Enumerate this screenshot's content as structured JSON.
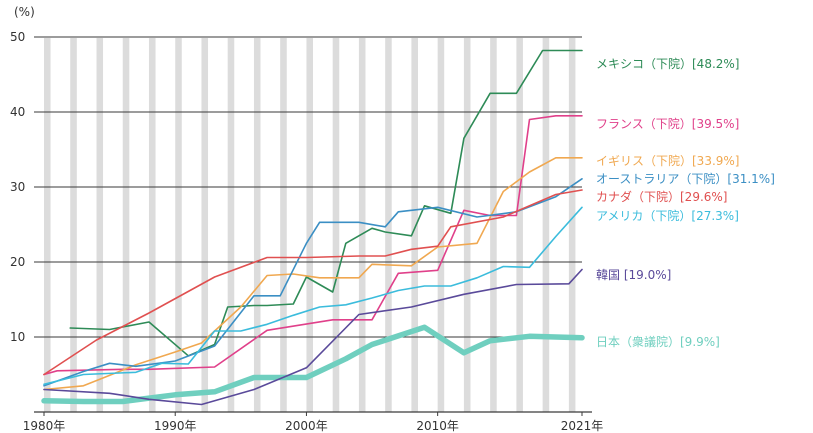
{
  "chart_data": {
    "type": "line",
    "yunit": "(%)",
    "ylim": [
      0,
      52
    ],
    "xlim": [
      1980,
      2021
    ],
    "yticks": [
      10,
      20,
      30,
      40,
      50
    ],
    "xticks": [
      {
        "value": 1980,
        "label": "1980年"
      },
      {
        "value": 1990,
        "label": "1990年"
      },
      {
        "value": 2000,
        "label": "2000年"
      },
      {
        "value": 2010,
        "label": "2010年"
      },
      {
        "value": 2021,
        "label": "2021年"
      }
    ],
    "grid": "horizontal lines with alternating vertical bands",
    "series": [
      {
        "key": "mexico",
        "label": "メキシコ（下院）[48.2%]",
        "color": "#2e8b57",
        "points": [
          [
            1982,
            11.2
          ],
          [
            1985,
            11.0
          ],
          [
            1988,
            12.0
          ],
          [
            1991,
            7.5
          ],
          [
            1993,
            9.0
          ],
          [
            1994,
            14.0
          ],
          [
            1996,
            14.2
          ],
          [
            1997,
            14.2
          ],
          [
            1999,
            14.4
          ],
          [
            2000,
            18.0
          ],
          [
            2002,
            16.0
          ],
          [
            2003,
            22.5
          ],
          [
            2005,
            24.5
          ],
          [
            2006,
            24.0
          ],
          [
            2008,
            23.5
          ],
          [
            2009,
            27.5
          ],
          [
            2011,
            26.5
          ],
          [
            2012,
            36.5
          ],
          [
            2014,
            42.5
          ],
          [
            2016,
            42.5
          ],
          [
            2018,
            48.2
          ],
          [
            2021,
            48.2
          ]
        ]
      },
      {
        "key": "france",
        "label": "フランス（下院）[39.5%]",
        "color": "#e0408a",
        "points": [
          [
            1980,
            5.0
          ],
          [
            1981,
            5.5
          ],
          [
            1986,
            5.7
          ],
          [
            1988,
            5.7
          ],
          [
            1993,
            6.0
          ],
          [
            1997,
            10.9
          ],
          [
            2002,
            12.3
          ],
          [
            2003,
            12.3
          ],
          [
            2005,
            12.3
          ],
          [
            2007,
            18.5
          ],
          [
            2010,
            18.9
          ],
          [
            2012,
            26.9
          ],
          [
            2014,
            26.2
          ],
          [
            2016,
            26.2
          ],
          [
            2017,
            39.0
          ],
          [
            2019,
            39.5
          ],
          [
            2021,
            39.5
          ]
        ]
      },
      {
        "key": "uk",
        "label": "イギリス（下院）[33.9%]",
        "color": "#f0a850",
        "points": [
          [
            1980,
            3.0
          ],
          [
            1983,
            3.5
          ],
          [
            1987,
            6.3
          ],
          [
            1990,
            8.0
          ],
          [
            1992,
            9.2
          ],
          [
            1995,
            14.0
          ],
          [
            1997,
            18.2
          ],
          [
            1999,
            18.4
          ],
          [
            2001,
            17.9
          ],
          [
            2004,
            17.9
          ],
          [
            2005,
            19.7
          ],
          [
            2008,
            19.5
          ],
          [
            2010,
            22.0
          ],
          [
            2013,
            22.5
          ],
          [
            2015,
            29.4
          ],
          [
            2017,
            32.0
          ],
          [
            2019,
            33.9
          ],
          [
            2021,
            33.9
          ]
        ]
      },
      {
        "key": "australia",
        "label": "オーストラリア（下院）[31.1%]",
        "color": "#3b8fc4",
        "points": [
          [
            1980,
            3.5
          ],
          [
            1983,
            5.4
          ],
          [
            1985,
            6.5
          ],
          [
            1987,
            6.1
          ],
          [
            1990,
            6.8
          ],
          [
            1993,
            8.8
          ],
          [
            1996,
            15.5
          ],
          [
            1998,
            15.5
          ],
          [
            2000,
            22.5
          ],
          [
            2001,
            25.3
          ],
          [
            2004,
            25.3
          ],
          [
            2006,
            24.7
          ],
          [
            2007,
            26.7
          ],
          [
            2010,
            27.3
          ],
          [
            2013,
            26.0
          ],
          [
            2016,
            26.7
          ],
          [
            2019,
            28.7
          ],
          [
            2021,
            31.1
          ]
        ]
      },
      {
        "key": "canada",
        "label": "カナダ（下院）[29.6%]",
        "color": "#e05050",
        "points": [
          [
            1980,
            5.0
          ],
          [
            1984,
            9.6
          ],
          [
            1988,
            13.2
          ],
          [
            1993,
            18.0
          ],
          [
            1997,
            20.6
          ],
          [
            2000,
            20.6
          ],
          [
            2004,
            20.8
          ],
          [
            2006,
            20.8
          ],
          [
            2008,
            21.7
          ],
          [
            2010,
            22.1
          ],
          [
            2011,
            24.7
          ],
          [
            2015,
            26.0
          ],
          [
            2019,
            29.0
          ],
          [
            2021,
            29.6
          ]
        ]
      },
      {
        "key": "usa",
        "label": "アメリカ（下院）[27.3%]",
        "color": "#3bbcdc",
        "points": [
          [
            1980,
            3.7
          ],
          [
            1983,
            5.0
          ],
          [
            1987,
            5.3
          ],
          [
            1989,
            6.5
          ],
          [
            1991,
            6.4
          ],
          [
            1993,
            10.8
          ],
          [
            1995,
            10.8
          ],
          [
            1997,
            11.7
          ],
          [
            1999,
            12.9
          ],
          [
            2001,
            14.0
          ],
          [
            2003,
            14.3
          ],
          [
            2005,
            15.2
          ],
          [
            2007,
            16.2
          ],
          [
            2009,
            16.8
          ],
          [
            2011,
            16.8
          ],
          [
            2013,
            17.9
          ],
          [
            2015,
            19.4
          ],
          [
            2017,
            19.3
          ],
          [
            2019,
            23.4
          ],
          [
            2021,
            27.3
          ]
        ]
      },
      {
        "key": "korea",
        "label": "韓国 [19.0%]",
        "color": "#5a4a9a",
        "points": [
          [
            1980,
            3.0
          ],
          [
            1985,
            2.5
          ],
          [
            1988,
            1.7
          ],
          [
            1992,
            1.0
          ],
          [
            1996,
            3.0
          ],
          [
            2000,
            5.9
          ],
          [
            2004,
            13.0
          ],
          [
            2008,
            14.0
          ],
          [
            2012,
            15.7
          ],
          [
            2016,
            17.0
          ],
          [
            2020,
            17.1
          ],
          [
            2021,
            19.0
          ]
        ]
      },
      {
        "key": "japan",
        "label": "日本（衆議院）[9.9%]",
        "color": "#6fcfbf",
        "bold": true,
        "points": [
          [
            1980,
            1.5
          ],
          [
            1983,
            1.4
          ],
          [
            1986,
            1.4
          ],
          [
            1990,
            2.3
          ],
          [
            1993,
            2.7
          ],
          [
            1996,
            4.6
          ],
          [
            2000,
            4.6
          ],
          [
            2003,
            7.1
          ],
          [
            2005,
            9.0
          ],
          [
            2009,
            11.3
          ],
          [
            2012,
            7.9
          ],
          [
            2014,
            9.5
          ],
          [
            2017,
            10.1
          ],
          [
            2021,
            9.9
          ]
        ]
      }
    ]
  }
}
